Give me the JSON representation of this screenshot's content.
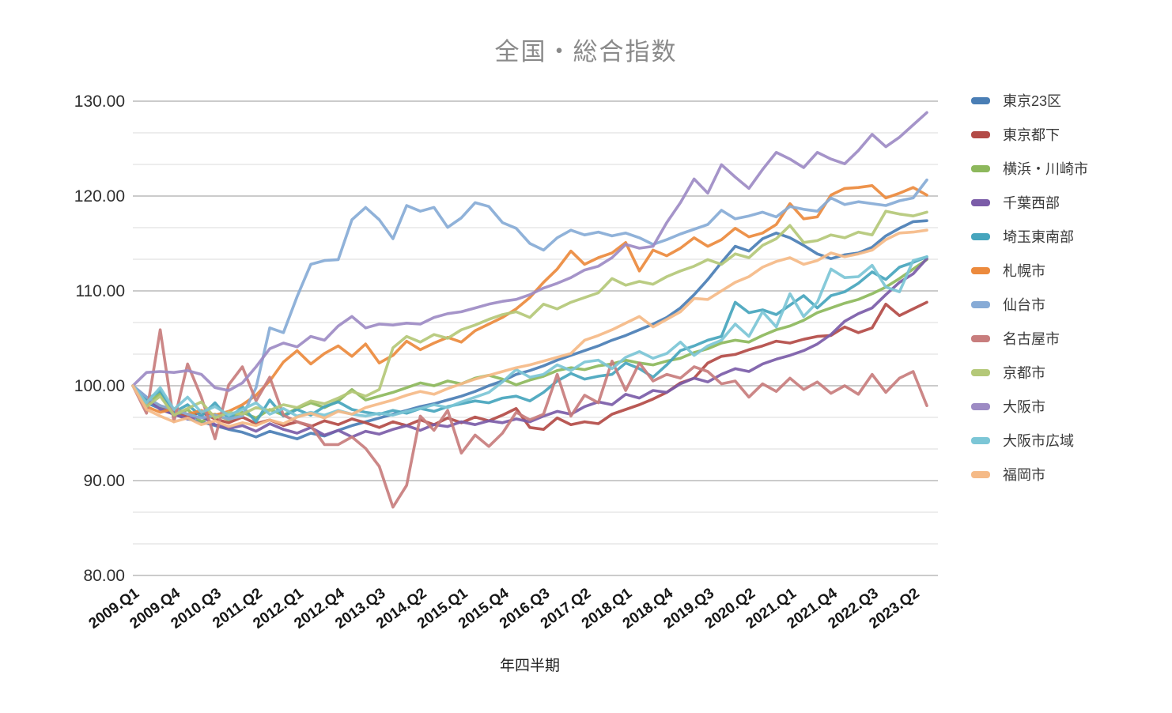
{
  "chart_data": {
    "type": "line",
    "title": "全国・総合指数",
    "xlabel": "年四半期",
    "ylabel": "",
    "ylim": [
      80,
      130
    ],
    "y_tick_labels": [
      "80.00",
      "90.00",
      "100.00",
      "110.00",
      "120.00",
      "130.00"
    ],
    "y_major_step": 10,
    "y_minor_divisions": 3,
    "grid": true,
    "legend_position": "right",
    "x_tick_every": 3,
    "x": [
      "2009.Q1",
      "2009.Q2",
      "2009.Q3",
      "2009.Q4",
      "2010.Q1",
      "2010.Q2",
      "2010.Q3",
      "2010.Q4",
      "2011.Q1",
      "2011.Q2",
      "2011.Q3",
      "2011.Q4",
      "2012.Q1",
      "2012.Q2",
      "2012.Q3",
      "2012.Q4",
      "2013.Q1",
      "2013.Q2",
      "2013.Q3",
      "2013.Q4",
      "2014.Q1",
      "2014.Q2",
      "2014.Q3",
      "2014.Q4",
      "2015.Q1",
      "2015.Q2",
      "2015.Q3",
      "2015.Q4",
      "2016.Q1",
      "2016.Q2",
      "2016.Q3",
      "2016.Q4",
      "2017.Q1",
      "2017.Q2",
      "2017.Q3",
      "2017.Q4",
      "2018.Q1",
      "2018.Q2",
      "2018.Q3",
      "2018.Q4",
      "2019.Q1",
      "2019.Q2",
      "2019.Q3",
      "2019.Q4",
      "2020.Q1",
      "2020.Q2",
      "2020.Q3",
      "2020.Q4",
      "2021.Q1",
      "2021.Q2",
      "2021.Q3",
      "2021.Q4",
      "2022.Q1",
      "2022.Q2",
      "2022.Q3",
      "2022.Q4",
      "2023.Q1",
      "2023.Q2",
      "2023.Q3"
    ],
    "series": [
      {
        "name": "東京23区",
        "color": "#4a7eb5",
        "values": [
          100,
          98.2,
          97.6,
          97.0,
          96.5,
          96.2,
          95.8,
          95.4,
          95.1,
          94.6,
          95.2,
          94.8,
          94.4,
          95.0,
          94.7,
          95.3,
          95.8,
          96.2,
          96.6,
          97.0,
          97.4,
          97.8,
          98.1,
          98.5,
          98.9,
          99.4,
          100.0,
          100.5,
          101.2,
          101.6,
          102.1,
          102.7,
          103.2,
          103.7,
          104.2,
          104.8,
          105.3,
          105.9,
          106.5,
          107.2,
          108.2,
          109.6,
          111.2,
          113.0,
          114.7,
          114.2,
          115.5,
          116.1,
          115.6,
          114.8,
          113.9,
          113.4,
          113.8,
          114.0,
          114.6,
          115.8,
          116.6,
          117.3,
          117.4
        ]
      },
      {
        "name": "東京都下",
        "color": "#b34b47",
        "values": [
          100,
          98.5,
          97.9,
          97.3,
          96.8,
          97.2,
          96.5,
          96.1,
          96.7,
          96.0,
          96.4,
          95.8,
          96.2,
          95.7,
          96.3,
          95.9,
          96.5,
          96.1,
          95.6,
          96.2,
          95.8,
          96.4,
          95.9,
          96.6,
          96.1,
          96.7,
          96.3,
          96.9,
          97.6,
          95.6,
          95.4,
          96.6,
          95.9,
          96.2,
          96.0,
          97.0,
          97.5,
          98.0,
          98.6,
          99.3,
          100.3,
          100.8,
          102.4,
          103.1,
          103.3,
          103.8,
          104.2,
          104.7,
          104.5,
          104.9,
          105.2,
          105.3,
          106.2,
          105.6,
          106.1,
          108.6,
          107.4,
          108.1,
          108.8
        ]
      },
      {
        "name": "横浜・川崎市",
        "color": "#8db85c",
        "values": [
          100,
          98.0,
          99.2,
          96.8,
          97.5,
          96.2,
          97.0,
          96.4,
          97.2,
          96.6,
          97.5,
          96.9,
          97.6,
          98.2,
          97.7,
          98.4,
          99.6,
          98.5,
          98.9,
          99.3,
          99.8,
          100.3,
          100.0,
          100.5,
          100.2,
          100.8,
          101.1,
          100.7,
          100.1,
          100.6,
          101.0,
          101.6,
          101.9,
          101.7,
          102.1,
          102.3,
          102.7,
          102.4,
          102.2,
          102.6,
          102.9,
          103.5,
          103.9,
          104.5,
          104.8,
          104.6,
          105.3,
          105.9,
          106.3,
          106.9,
          107.7,
          108.2,
          108.7,
          109.1,
          109.7,
          110.4,
          111.3,
          112.3,
          113.3
        ]
      },
      {
        "name": "千葉西部",
        "color": "#7b5ca8",
        "values": [
          100,
          98.8,
          97.5,
          97.0,
          96.5,
          96.8,
          95.9,
          95.5,
          95.8,
          95.2,
          96.0,
          95.4,
          95.0,
          95.6,
          94.8,
          95.3,
          94.6,
          95.2,
          94.9,
          95.4,
          95.8,
          95.3,
          95.9,
          95.7,
          96.2,
          95.9,
          96.3,
          96.1,
          96.5,
          96.2,
          96.8,
          97.3,
          97.0,
          97.8,
          98.3,
          98.0,
          99.1,
          98.7,
          99.5,
          99.3,
          100.2,
          100.8,
          100.4,
          101.2,
          101.8,
          101.5,
          102.3,
          102.8,
          103.2,
          103.7,
          104.4,
          105.4,
          106.8,
          107.6,
          108.2,
          109.6,
          110.9,
          111.8,
          113.4
        ]
      },
      {
        "name": "埼玉東南部",
        "color": "#46a5bd",
        "values": [
          100,
          98.5,
          99.5,
          97.2,
          98.0,
          96.8,
          98.2,
          96.5,
          97.8,
          96.2,
          98.5,
          96.8,
          97.5,
          96.9,
          97.8,
          98.3,
          97.5,
          97.2,
          97.0,
          97.4,
          97.1,
          97.6,
          97.3,
          97.8,
          98.1,
          98.4,
          98.2,
          98.7,
          98.9,
          98.4,
          99.3,
          100.5,
          101.3,
          100.7,
          101.0,
          101.2,
          102.4,
          101.8,
          100.9,
          102.2,
          103.7,
          104.2,
          104.8,
          105.2,
          108.8,
          107.7,
          108.0,
          107.5,
          108.5,
          109.5,
          108.2,
          109.5,
          109.9,
          110.8,
          112.0,
          111.2,
          112.5,
          113.0,
          113.6
        ]
      },
      {
        "name": "札幌市",
        "color": "#ec8a3d",
        "values": [
          100,
          97.8,
          97.2,
          97.6,
          97.0,
          97.4,
          96.9,
          97.3,
          98.0,
          99.0,
          100.5,
          102.5,
          103.7,
          102.3,
          103.4,
          104.2,
          103.1,
          104.4,
          102.4,
          103.2,
          104.7,
          103.8,
          104.5,
          105.1,
          104.6,
          105.8,
          106.5,
          107.2,
          108.1,
          109.3,
          110.9,
          112.3,
          114.2,
          112.8,
          113.5,
          114.0,
          115.1,
          112.1,
          114.3,
          113.7,
          114.5,
          115.6,
          114.7,
          115.4,
          116.6,
          115.7,
          116.1,
          117.0,
          119.2,
          117.6,
          117.8,
          120.1,
          120.8,
          120.9,
          121.1,
          119.8,
          120.3,
          120.9,
          120.1
        ]
      },
      {
        "name": "仙台市",
        "color": "#87abd6",
        "values": [
          100,
          98.8,
          97.9,
          97.5,
          97.0,
          96.6,
          96.9,
          96.5,
          96.8,
          99.8,
          106.1,
          105.6,
          109.4,
          112.8,
          113.2,
          113.3,
          117.5,
          118.8,
          117.5,
          115.5,
          119.0,
          118.4,
          118.8,
          116.7,
          117.7,
          119.3,
          118.9,
          117.2,
          116.6,
          115.0,
          114.3,
          115.6,
          116.4,
          115.9,
          116.2,
          115.8,
          116.1,
          115.6,
          114.9,
          115.4,
          116.0,
          116.5,
          117.0,
          118.5,
          117.6,
          117.9,
          118.3,
          117.8,
          118.9,
          118.6,
          118.4,
          119.8,
          119.1,
          119.4,
          119.2,
          119.0,
          119.5,
          119.8,
          121.7
        ]
      },
      {
        "name": "名古屋市",
        "color": "#c87d7d",
        "values": [
          100,
          97.1,
          105.9,
          96.2,
          102.3,
          98.8,
          94.4,
          100.1,
          102.0,
          98.4,
          100.9,
          96.9,
          96.2,
          95.8,
          93.8,
          93.8,
          94.6,
          93.4,
          91.5,
          87.2,
          89.5,
          96.8,
          95.3,
          97.4,
          92.9,
          94.8,
          93.6,
          95.0,
          97.2,
          96.4,
          97.0,
          101.2,
          96.8,
          99.0,
          98.2,
          102.6,
          99.5,
          102.4,
          100.5,
          101.2,
          100.8,
          102.0,
          101.5,
          100.2,
          100.5,
          98.8,
          100.2,
          99.4,
          100.8,
          99.6,
          100.4,
          99.2,
          100.0,
          99.1,
          101.2,
          99.3,
          100.8,
          101.5,
          97.9
        ]
      },
      {
        "name": "京都市",
        "color": "#b4c878",
        "values": [
          100,
          97.8,
          98.9,
          96.9,
          97.6,
          98.3,
          96.6,
          97.2,
          97.0,
          97.7,
          97.4,
          98.0,
          97.7,
          98.4,
          98.1,
          98.7,
          99.4,
          98.9,
          99.6,
          104.0,
          105.2,
          104.6,
          105.4,
          105.0,
          105.9,
          106.4,
          107.0,
          107.5,
          107.8,
          107.2,
          108.6,
          108.1,
          108.8,
          109.3,
          109.8,
          111.3,
          110.6,
          111.0,
          110.7,
          111.5,
          112.1,
          112.6,
          113.3,
          112.8,
          113.9,
          113.5,
          114.8,
          115.5,
          116.9,
          115.1,
          115.3,
          115.9,
          115.6,
          116.2,
          115.9,
          118.4,
          118.1,
          117.9,
          118.3
        ]
      },
      {
        "name": "大阪市",
        "color": "#9d8bc4",
        "values": [
          100,
          101.4,
          101.5,
          101.4,
          101.6,
          101.2,
          99.8,
          99.5,
          100.3,
          102.0,
          103.9,
          104.5,
          104.1,
          105.2,
          104.8,
          106.3,
          107.3,
          106.1,
          106.5,
          106.4,
          106.6,
          106.5,
          107.2,
          107.6,
          107.8,
          108.2,
          108.6,
          108.9,
          109.1,
          109.6,
          110.3,
          110.8,
          111.4,
          112.2,
          112.6,
          113.5,
          114.9,
          114.5,
          114.7,
          117.2,
          119.3,
          121.8,
          120.3,
          123.3,
          122.0,
          120.8,
          122.8,
          124.6,
          123.9,
          123.0,
          124.6,
          123.9,
          123.4,
          124.8,
          126.5,
          125.2,
          126.2,
          127.5,
          128.8
        ]
      },
      {
        "name": "大阪市広域",
        "color": "#7cc6d6",
        "values": [
          100,
          98.2,
          99.8,
          97.5,
          98.8,
          97.2,
          97.8,
          96.9,
          97.5,
          98.2,
          97.0,
          97.6,
          96.8,
          97.2,
          96.9,
          97.4,
          97.0,
          96.8,
          97.1,
          96.9,
          97.3,
          97.6,
          98.0,
          97.7,
          98.3,
          98.8,
          99.3,
          100.4,
          101.7,
          100.9,
          101.2,
          102.2,
          101.6,
          102.5,
          102.7,
          101.8,
          103.0,
          103.6,
          102.9,
          103.4,
          104.6,
          103.2,
          104.2,
          104.8,
          106.5,
          105.2,
          107.8,
          106.2,
          109.7,
          107.3,
          108.8,
          112.3,
          111.4,
          111.5,
          112.7,
          110.4,
          109.9,
          113.2,
          113.6
        ]
      },
      {
        "name": "福岡市",
        "color": "#f5ba87",
        "values": [
          100,
          97.5,
          96.8,
          96.2,
          96.6,
          95.9,
          96.3,
          95.7,
          96.1,
          95.8,
          96.4,
          96.0,
          96.7,
          97.1,
          96.6,
          97.3,
          97.0,
          97.7,
          98.1,
          98.5,
          99.0,
          99.4,
          99.1,
          99.7,
          100.2,
          100.7,
          101.1,
          101.5,
          101.9,
          102.2,
          102.6,
          103.0,
          103.4,
          104.8,
          105.3,
          105.9,
          106.6,
          107.3,
          106.2,
          107.0,
          107.8,
          109.2,
          109.1,
          110.0,
          110.9,
          111.5,
          112.5,
          113.1,
          113.5,
          112.8,
          113.2,
          114.0,
          113.6,
          113.9,
          114.3,
          115.4,
          116.1,
          116.2,
          116.4
        ]
      }
    ]
  }
}
